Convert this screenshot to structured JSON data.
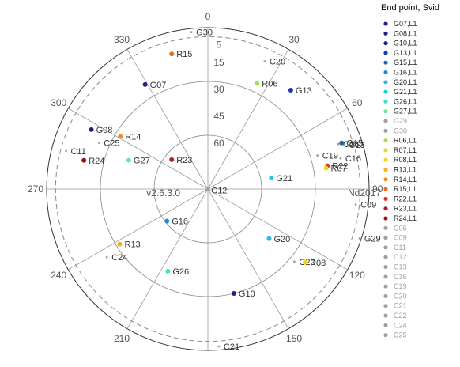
{
  "chart_data": {
    "type": "scatter",
    "coordinate_system": "polar",
    "angular_direction": "clockwise",
    "angular_zero": "top",
    "angle_ticks": [
      "0",
      "30",
      "60",
      "90",
      "120",
      "150",
      "210",
      "240",
      "270",
      "300",
      "330"
    ],
    "angle_tick_values": [
      0,
      30,
      60,
      90,
      120,
      150,
      210,
      240,
      270,
      300,
      330
    ],
    "elevation_ticks": [
      "5",
      "15",
      "30",
      "45",
      "60"
    ],
    "elevation_tick_values": [
      5,
      15,
      30,
      45,
      60
    ],
    "elevation_range": [
      0,
      90
    ],
    "dashed_circle_elevation": 5,
    "annotations": {
      "left": "v2.6.3.0",
      "right": "Nd2017"
    },
    "legend": {
      "title": "End point, Svid",
      "placement": "right",
      "entries": [
        {
          "label": "G07,L1",
          "color": "#1a237e"
        },
        {
          "label": "G08,L1",
          "color": "#1a237e"
        },
        {
          "label": "G10,L1",
          "color": "#1a237e"
        },
        {
          "label": "G13,L1",
          "color": "#1a37b0"
        },
        {
          "label": "G15,L1",
          "color": "#1565c0"
        },
        {
          "label": "G16,L1",
          "color": "#1e88e5"
        },
        {
          "label": "G20,L1",
          "color": "#29b6f6"
        },
        {
          "label": "G21,L1",
          "color": "#26c6da"
        },
        {
          "label": "G26,L1",
          "color": "#40e0d0"
        },
        {
          "label": "G27,L1",
          "color": "#66e8a0"
        },
        {
          "label": "G29",
          "color": "#a0a0a0"
        },
        {
          "label": "G30",
          "color": "#a0a0a0"
        },
        {
          "label": "R06,L1",
          "color": "#a5e050"
        },
        {
          "label": "R07,L1",
          "color": "#e0e020"
        },
        {
          "label": "R08,L1",
          "color": "#f5d020"
        },
        {
          "label": "R13,L1",
          "color": "#f5b020"
        },
        {
          "label": "R14,L1",
          "color": "#f09020"
        },
        {
          "label": "R15,L1",
          "color": "#e07020"
        },
        {
          "label": "R22,L1",
          "color": "#e03020"
        },
        {
          "label": "R23,L1",
          "color": "#c01818"
        },
        {
          "label": "R24,L1",
          "color": "#a01010"
        },
        {
          "label": "C06",
          "color": "#a0a0a0"
        },
        {
          "label": "C09",
          "color": "#a0a0a0"
        },
        {
          "label": "C11",
          "color": "#a0a0a0"
        },
        {
          "label": "C12",
          "color": "#a0a0a0"
        },
        {
          "label": "C13",
          "color": "#a0a0a0"
        },
        {
          "label": "C16",
          "color": "#a0a0a0"
        },
        {
          "label": "C19",
          "color": "#a0a0a0"
        },
        {
          "label": "C20",
          "color": "#a0a0a0"
        },
        {
          "label": "C21",
          "color": "#a0a0a0"
        },
        {
          "label": "C22",
          "color": "#a0a0a0"
        },
        {
          "label": "C24",
          "color": "#a0a0a0"
        },
        {
          "label": "C25",
          "color": "#a0a0a0"
        }
      ]
    },
    "points": [
      {
        "label": "G30",
        "azimuth": 354,
        "elevation": 2,
        "color": "#a0a0a0",
        "size": "small"
      },
      {
        "label": "R15",
        "azimuth": 345,
        "elevation": 12,
        "color": "#e07020",
        "size": "large"
      },
      {
        "label": "C20",
        "azimuth": 24,
        "elevation": 12,
        "color": "#a0a0a0",
        "size": "small"
      },
      {
        "label": "G07",
        "azimuth": 329,
        "elevation": 22,
        "color": "#1a237e",
        "size": "large"
      },
      {
        "label": "R06",
        "azimuth": 25,
        "elevation": 25,
        "color": "#a5e050",
        "size": "large"
      },
      {
        "label": "G13",
        "azimuth": 40,
        "elevation": 18,
        "color": "#1a37b0",
        "size": "large"
      },
      {
        "label": "G08",
        "azimuth": 297,
        "elevation": 17,
        "color": "#1a237e",
        "size": "large"
      },
      {
        "label": "C25",
        "azimuth": 293,
        "elevation": 24,
        "color": "#a0a0a0",
        "size": "small"
      },
      {
        "label": "R14",
        "azimuth": 301,
        "elevation": 33,
        "color": "#f09020",
        "size": "large"
      },
      {
        "label": "C11",
        "azimuth": 285,
        "elevation": 8,
        "color": "#a0a0a0",
        "size": "small"
      },
      {
        "label": "R24",
        "azimuth": 283,
        "elevation": 19,
        "color": "#a01010",
        "size": "large"
      },
      {
        "label": "G27",
        "azimuth": 290,
        "elevation": 43,
        "color": "#66e8a0",
        "size": "large"
      },
      {
        "label": "R23",
        "azimuth": 309,
        "elevation": 64,
        "color": "#c01818",
        "size": "large"
      },
      {
        "label": "C06",
        "azimuth": 71,
        "elevation": 13,
        "color": "#a0a0a0",
        "size": "small"
      },
      {
        "label": "C13",
        "azimuth": 72,
        "elevation": 10,
        "color": "#a0a0a0",
        "size": "small"
      },
      {
        "label": "G15",
        "azimuth": 71,
        "elevation": 11,
        "color": "#1565c0",
        "size": "large"
      },
      {
        "label": "C19",
        "azimuth": 73,
        "elevation": 26,
        "color": "#a0a0a0",
        "size": "small"
      },
      {
        "label": "C16",
        "azimuth": 77,
        "elevation": 14,
        "color": "#a0a0a0",
        "size": "small"
      },
      {
        "label": "R22",
        "azimuth": 79,
        "elevation": 22,
        "color": "#e03020",
        "size": "large"
      },
      {
        "label": "R07",
        "azimuth": 80,
        "elevation": 23,
        "color": "#e0e020",
        "size": "large"
      },
      {
        "label": "G21",
        "azimuth": 80,
        "elevation": 54,
        "color": "#26c6da",
        "size": "large"
      },
      {
        "label": "C12",
        "azimuth": 230,
        "elevation": 89,
        "color": "#a0a0a0",
        "size": "small"
      },
      {
        "label": "C09",
        "azimuth": 96,
        "elevation": 7,
        "color": "#a0a0a0",
        "size": "small"
      },
      {
        "label": "G29",
        "azimuth": 108,
        "elevation": 1,
        "color": "#a0a0a0",
        "size": "small"
      },
      {
        "label": "G16",
        "azimuth": 232,
        "elevation": 61,
        "color": "#1e88e5",
        "size": "large"
      },
      {
        "label": "G20",
        "azimuth": 129,
        "elevation": 46,
        "color": "#29b6f6",
        "size": "large"
      },
      {
        "label": "C22",
        "azimuth": 130,
        "elevation": 27,
        "color": "#a0a0a0",
        "size": "small"
      },
      {
        "label": "R08",
        "azimuth": 127,
        "elevation": 22,
        "color": "#f5d020",
        "size": "large"
      },
      {
        "label": "R13",
        "azimuth": 238,
        "elevation": 32,
        "color": "#f5b020",
        "size": "large"
      },
      {
        "label": "C24",
        "azimuth": 236,
        "elevation": 22,
        "color": "#a0a0a0",
        "size": "small"
      },
      {
        "label": "G26",
        "azimuth": 206,
        "elevation": 39,
        "color": "#40e0d0",
        "size": "large"
      },
      {
        "label": "G10",
        "azimuth": 166,
        "elevation": 30,
        "color": "#1a237e",
        "size": "large"
      },
      {
        "label": "C21",
        "azimuth": 176,
        "elevation": 2,
        "color": "#a0a0a0",
        "size": "small"
      }
    ]
  }
}
